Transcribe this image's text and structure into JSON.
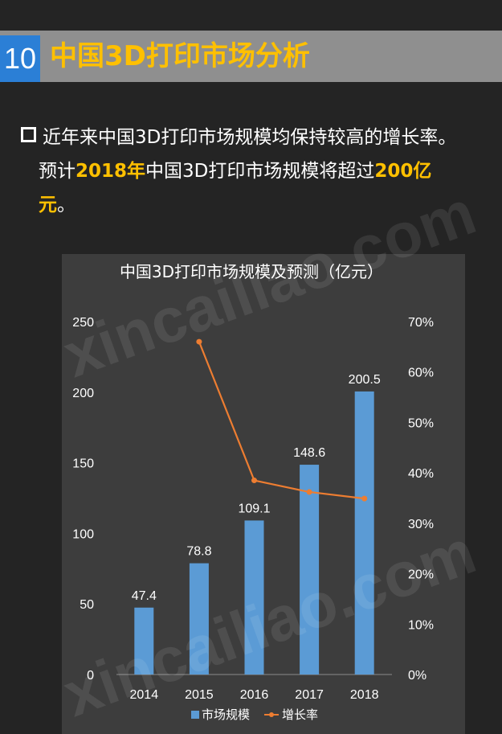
{
  "header": {
    "number": "10",
    "title": "中国3D打印市场分析"
  },
  "intro": {
    "line1": "近年来中国3D打印市场规模均保持较高的增长率。",
    "line2_a": "预计",
    "line2_year": "2018年",
    "line2_b": "中国3D打印市场规模将超过",
    "line2_amount": "200亿",
    "line3_amount": "元",
    "line3_end": "。"
  },
  "watermark": "xincailiao.com",
  "colors": {
    "background": "#242424",
    "accent": "#ffc000",
    "number_badge": "#2b7fd6",
    "chart_panel": "#3d3d3d",
    "bar": "#5b9bd5",
    "line": "#ed7d31"
  },
  "chart_data": {
    "type": "bar",
    "title": "中国3D打印市场规模及预测（亿元）",
    "categories": [
      "2014",
      "2015",
      "2016",
      "2017",
      "2018"
    ],
    "series": [
      {
        "name": "市场规模",
        "type": "bar",
        "axis": "left",
        "values": [
          47.4,
          78.8,
          109.1,
          148.6,
          200.5
        ],
        "labels": [
          "47.4",
          "78.8",
          "109.1",
          "148.6",
          "200.5"
        ]
      },
      {
        "name": "增长率",
        "type": "line",
        "axis": "right",
        "values": [
          null,
          0.66,
          0.385,
          0.362,
          0.349
        ]
      }
    ],
    "y_left": {
      "min": 0,
      "max": 250,
      "ticks": [
        "0",
        "50",
        "100",
        "150",
        "200",
        "250"
      ]
    },
    "y_right": {
      "min": 0,
      "max": 0.7,
      "ticks": [
        "0%",
        "10%",
        "20%",
        "30%",
        "40%",
        "50%",
        "60%",
        "70%"
      ]
    },
    "legend": "bottom",
    "grid": false
  }
}
